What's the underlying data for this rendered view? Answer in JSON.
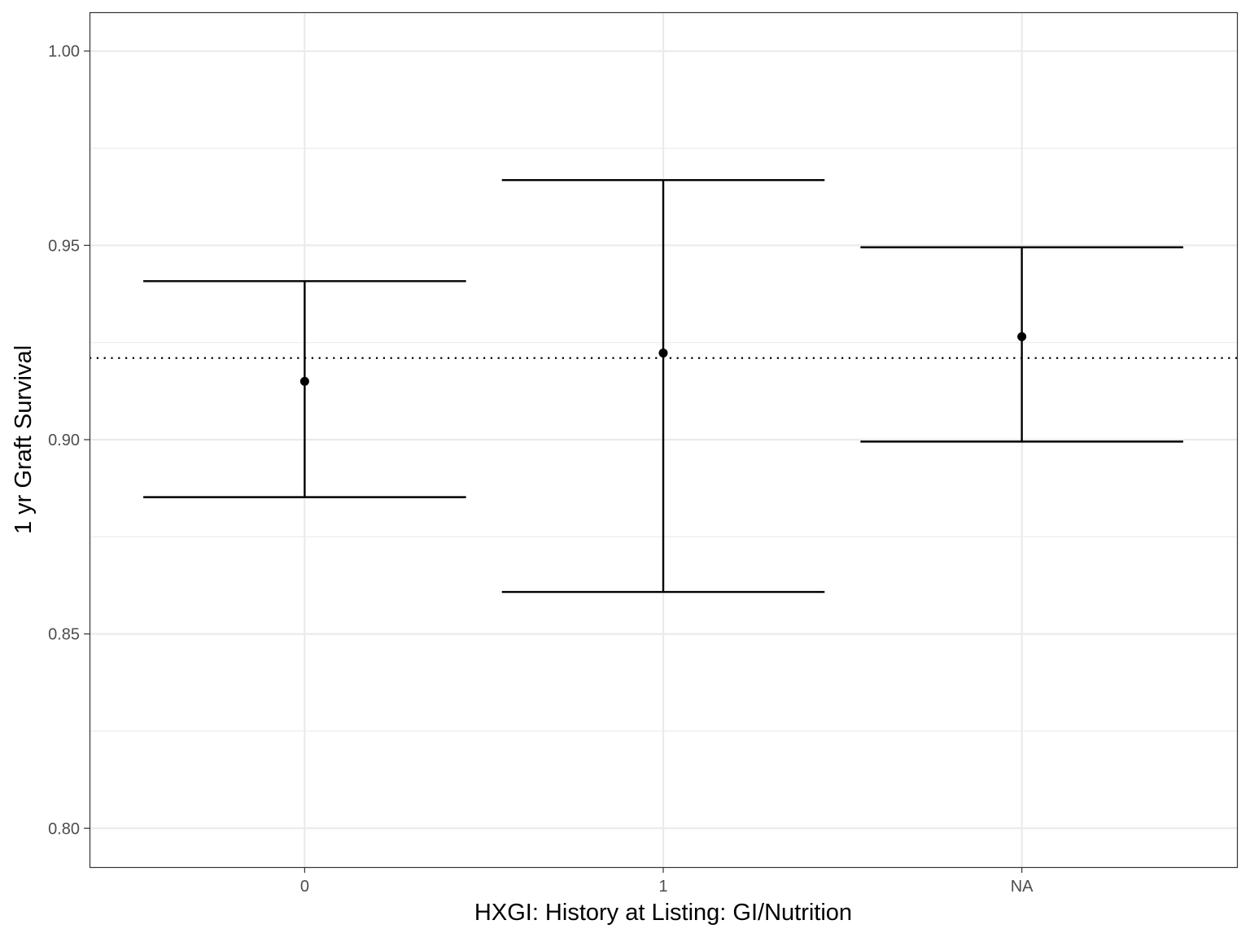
{
  "chart_data": {
    "type": "errorbar",
    "title": "",
    "xlabel": "HXGI: History at Listing: GI/Nutrition",
    "ylabel": "1 yr Graft Survival",
    "categories": [
      "0",
      "1",
      "NA"
    ],
    "series": [
      {
        "values": [
          0.915,
          0.9223,
          0.9265
        ],
        "lower": [
          0.8852,
          0.8608,
          0.8995
        ],
        "upper": [
          0.9408,
          0.9668,
          0.9495
        ]
      }
    ],
    "reference_line": {
      "y": 0.921,
      "style": "dotted"
    },
    "ylim": [
      0.79,
      1.01
    ],
    "yticks": [
      0.8,
      0.85,
      0.9,
      0.95,
      1.0
    ],
    "ytick_labels": [
      "0.80",
      "0.85",
      "0.90",
      "0.95",
      "1.00"
    ],
    "grid": true,
    "legend": "none",
    "colors": {
      "marks": "#000000",
      "grid": "#ebebeb",
      "panel_border": "#333333",
      "tick_text": "#4d4d4d"
    }
  }
}
